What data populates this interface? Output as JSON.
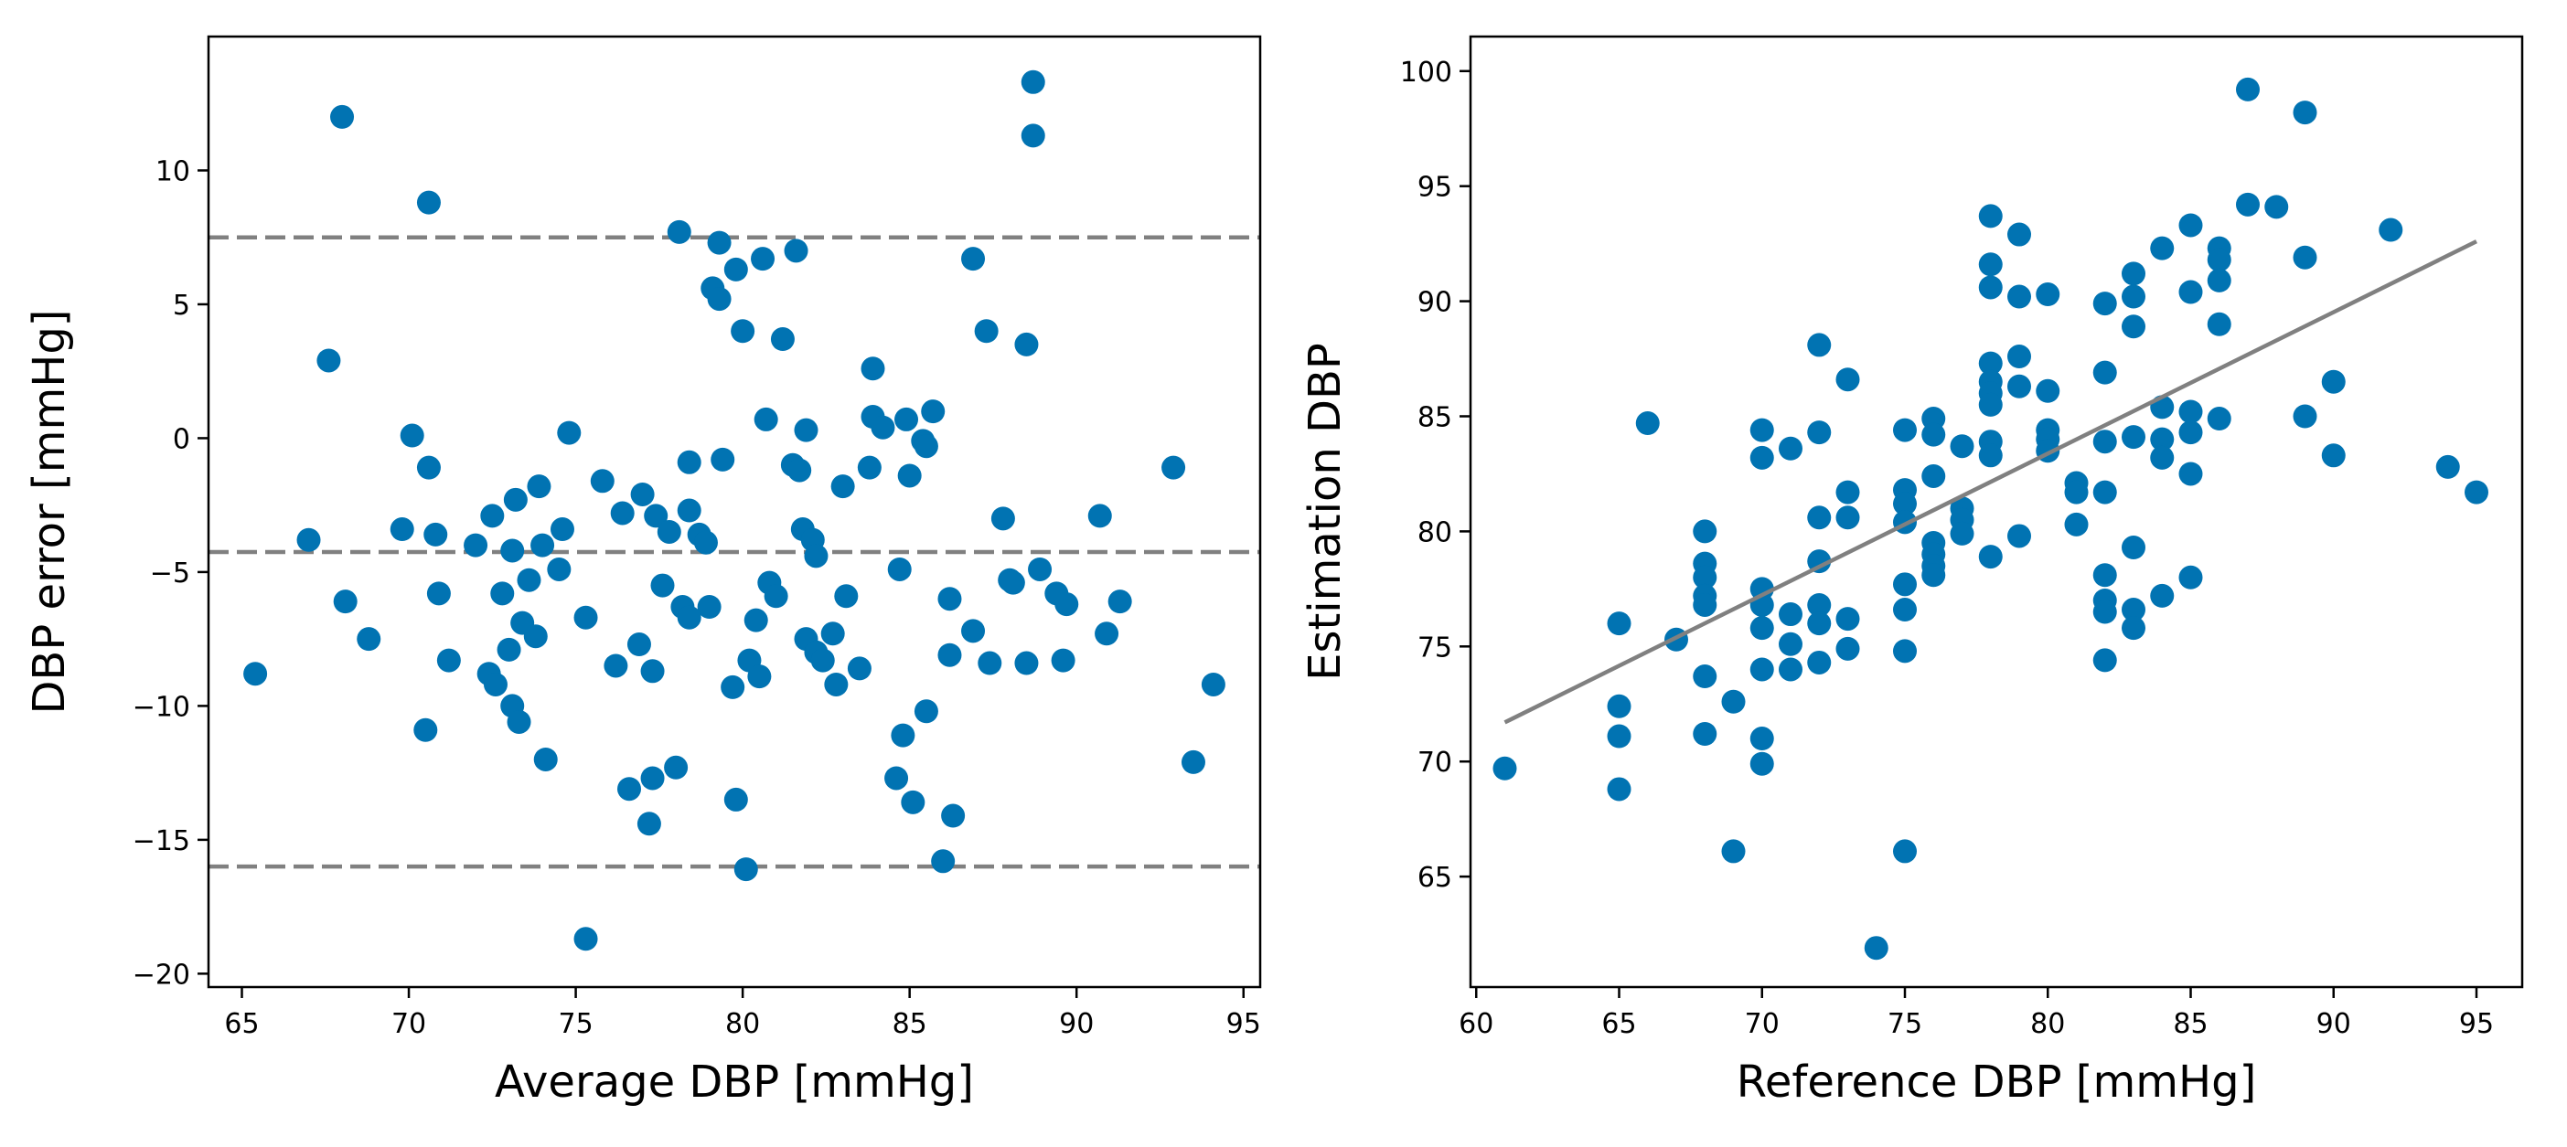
{
  "chart_data": [
    {
      "type": "scatter",
      "name": "bland-altman",
      "title": "",
      "xlabel": "Average DBP [mmHg]",
      "ylabel": "DBP error [mmHg]",
      "xlim": [
        64,
        95.5
      ],
      "ylim": [
        -20.5,
        15
      ],
      "xticks": [
        65,
        70,
        75,
        80,
        85,
        90,
        95
      ],
      "yticks": [
        -20,
        -15,
        -10,
        -5,
        0,
        5,
        10
      ],
      "tick_labels": {
        "x": [
          "65",
          "70",
          "75",
          "80",
          "85",
          "90",
          "95"
        ],
        "y": [
          "−20",
          "−15",
          "−10",
          "−5",
          "0",
          "5",
          "10"
        ]
      },
      "marker_color": "#0173b2",
      "line_color": "#808080",
      "hlines": [
        7.5,
        -4.25,
        -16.0
      ],
      "points": [
        [
          65.4,
          -8.8
        ],
        [
          67.0,
          -3.8
        ],
        [
          67.6,
          2.9
        ],
        [
          68.0,
          12.0
        ],
        [
          68.1,
          -6.1
        ],
        [
          68.8,
          -7.5
        ],
        [
          69.8,
          -3.4
        ],
        [
          70.1,
          0.1
        ],
        [
          70.5,
          -10.9
        ],
        [
          70.6,
          -1.1
        ],
        [
          70.6,
          8.8
        ],
        [
          70.8,
          -3.6
        ],
        [
          70.9,
          -5.8
        ],
        [
          71.2,
          -8.3
        ],
        [
          72.0,
          -4.0
        ],
        [
          72.4,
          -8.8
        ],
        [
          72.5,
          -2.9
        ],
        [
          72.6,
          -9.2
        ],
        [
          72.8,
          -5.8
        ],
        [
          73.0,
          -7.9
        ],
        [
          73.1,
          -4.2
        ],
        [
          73.1,
          -10.0
        ],
        [
          73.2,
          -2.3
        ],
        [
          73.3,
          -10.6
        ],
        [
          73.4,
          -6.9
        ],
        [
          73.6,
          -5.3
        ],
        [
          73.8,
          -7.4
        ],
        [
          73.9,
          -1.8
        ],
        [
          74.0,
          -4.0
        ],
        [
          74.1,
          -12.0
        ],
        [
          74.5,
          -4.9
        ],
        [
          74.6,
          -3.4
        ],
        [
          74.8,
          0.2
        ],
        [
          75.3,
          -18.7
        ],
        [
          75.3,
          -6.7
        ],
        [
          75.8,
          -1.6
        ],
        [
          76.2,
          -8.5
        ],
        [
          76.4,
          -2.8
        ],
        [
          76.6,
          -13.1
        ],
        [
          76.9,
          -7.7
        ],
        [
          77.0,
          -2.1
        ],
        [
          77.2,
          -14.4
        ],
        [
          77.3,
          -12.7
        ],
        [
          77.3,
          -8.7
        ],
        [
          77.4,
          -2.9
        ],
        [
          77.6,
          -5.5
        ],
        [
          77.8,
          -3.5
        ],
        [
          78.0,
          -12.3
        ],
        [
          78.1,
          7.7
        ],
        [
          78.2,
          -6.3
        ],
        [
          78.4,
          -6.7
        ],
        [
          78.4,
          -2.7
        ],
        [
          78.4,
          -0.9
        ],
        [
          78.7,
          -3.6
        ],
        [
          78.9,
          -3.9
        ],
        [
          79.0,
          -6.3
        ],
        [
          79.1,
          5.6
        ],
        [
          79.3,
          5.2
        ],
        [
          79.3,
          7.3
        ],
        [
          79.4,
          -0.8
        ],
        [
          79.7,
          -9.3
        ],
        [
          79.8,
          -13.5
        ],
        [
          79.8,
          6.3
        ],
        [
          80.0,
          4.0
        ],
        [
          80.1,
          -16.1
        ],
        [
          80.2,
          -8.3
        ],
        [
          80.4,
          -6.8
        ],
        [
          80.5,
          -8.9
        ],
        [
          80.6,
          6.7
        ],
        [
          80.7,
          0.7
        ],
        [
          80.8,
          -5.4
        ],
        [
          81.0,
          -5.9
        ],
        [
          81.2,
          3.7
        ],
        [
          81.5,
          -1.0
        ],
        [
          81.6,
          7.0
        ],
        [
          81.7,
          -1.2
        ],
        [
          81.8,
          -3.4
        ],
        [
          81.9,
          -7.5
        ],
        [
          81.9,
          0.3
        ],
        [
          82.1,
          -3.8
        ],
        [
          82.2,
          -8.0
        ],
        [
          82.2,
          -4.4
        ],
        [
          82.4,
          -8.3
        ],
        [
          82.7,
          -7.3
        ],
        [
          82.8,
          -9.2
        ],
        [
          83.0,
          -1.8
        ],
        [
          83.1,
          -5.9
        ],
        [
          83.5,
          -8.6
        ],
        [
          83.8,
          -1.1
        ],
        [
          83.9,
          0.8
        ],
        [
          83.9,
          2.6
        ],
        [
          84.2,
          0.4
        ],
        [
          84.6,
          -12.7
        ],
        [
          84.7,
          -4.9
        ],
        [
          84.8,
          -11.1
        ],
        [
          84.9,
          0.7
        ],
        [
          85.0,
          -1.4
        ],
        [
          85.1,
          -13.6
        ],
        [
          85.4,
          -0.1
        ],
        [
          85.5,
          -10.2
        ],
        [
          85.5,
          -0.3
        ],
        [
          85.7,
          1.0
        ],
        [
          86.0,
          -15.8
        ],
        [
          86.2,
          -8.1
        ],
        [
          86.2,
          -6.0
        ],
        [
          86.3,
          -14.1
        ],
        [
          86.9,
          -7.2
        ],
        [
          86.9,
          6.7
        ],
        [
          87.3,
          4.0
        ],
        [
          87.4,
          -8.4
        ],
        [
          87.8,
          -3.0
        ],
        [
          88.0,
          -5.3
        ],
        [
          88.1,
          -5.4
        ],
        [
          88.5,
          3.5
        ],
        [
          88.5,
          -8.4
        ],
        [
          88.7,
          11.3
        ],
        [
          88.7,
          13.3
        ],
        [
          88.9,
          -4.9
        ],
        [
          89.4,
          -5.8
        ],
        [
          89.6,
          -8.3
        ],
        [
          89.7,
          -6.2
        ],
        [
          90.7,
          -2.9
        ],
        [
          90.9,
          -7.3
        ],
        [
          91.3,
          -6.1
        ],
        [
          92.9,
          -1.1
        ],
        [
          93.5,
          -12.1
        ],
        [
          94.1,
          -9.2
        ]
      ]
    },
    {
      "type": "scatter",
      "name": "correlation",
      "title": "",
      "xlabel": "Reference DBP [mmHg]",
      "ylabel": "Estimation DBP",
      "xlim": [
        59.8,
        96.6
      ],
      "ylim": [
        60.2,
        101.5
      ],
      "xticks": [
        60,
        65,
        70,
        75,
        80,
        85,
        90,
        95
      ],
      "yticks": [
        65,
        70,
        75,
        80,
        85,
        90,
        95,
        100
      ],
      "tick_labels": {
        "x": [
          "60",
          "65",
          "70",
          "75",
          "80",
          "85",
          "90",
          "95"
        ],
        "y": [
          "65",
          "70",
          "75",
          "80",
          "85",
          "90",
          "95",
          "100"
        ]
      },
      "marker_color": "#0173b2",
      "line_color": "#808080",
      "fit_line": [
        [
          61,
          71.7
        ],
        [
          95,
          92.6
        ]
      ],
      "points": [
        [
          61,
          69.7
        ],
        [
          65,
          76.0
        ],
        [
          65,
          72.4
        ],
        [
          65,
          71.1
        ],
        [
          65,
          68.8
        ],
        [
          66,
          84.7
        ],
        [
          67,
          75.3
        ],
        [
          68,
          80.0
        ],
        [
          68,
          78.6
        ],
        [
          68,
          78.0
        ],
        [
          68,
          77.2
        ],
        [
          68,
          76.8
        ],
        [
          68,
          73.7
        ],
        [
          68,
          71.2
        ],
        [
          69,
          72.6
        ],
        [
          69,
          66.1
        ],
        [
          70,
          84.4
        ],
        [
          70,
          83.2
        ],
        [
          70,
          77.5
        ],
        [
          70,
          76.8
        ],
        [
          70,
          75.8
        ],
        [
          70,
          74.0
        ],
        [
          70,
          71.0
        ],
        [
          70,
          69.9
        ],
        [
          71,
          83.6
        ],
        [
          71,
          76.4
        ],
        [
          71,
          75.1
        ],
        [
          71,
          74.0
        ],
        [
          72,
          88.1
        ],
        [
          72,
          84.3
        ],
        [
          72,
          80.6
        ],
        [
          72,
          78.7
        ],
        [
          72,
          76.8
        ],
        [
          72,
          76.0
        ],
        [
          72,
          74.3
        ],
        [
          73,
          86.6
        ],
        [
          73,
          81.7
        ],
        [
          73,
          80.6
        ],
        [
          73,
          76.2
        ],
        [
          73,
          74.9
        ],
        [
          74,
          61.9
        ],
        [
          75,
          84.4
        ],
        [
          75,
          81.8
        ],
        [
          75,
          81.2
        ],
        [
          75,
          80.4
        ],
        [
          75,
          77.7
        ],
        [
          75,
          76.6
        ],
        [
          75,
          74.8
        ],
        [
          75,
          66.1
        ],
        [
          76,
          84.9
        ],
        [
          76,
          84.2
        ],
        [
          76,
          82.4
        ],
        [
          76,
          79.5
        ],
        [
          76,
          79.0
        ],
        [
          76,
          78.5
        ],
        [
          76,
          78.1
        ],
        [
          77,
          83.7
        ],
        [
          77,
          81.0
        ],
        [
          77,
          80.5
        ],
        [
          77,
          79.9
        ],
        [
          78,
          93.7
        ],
        [
          78,
          91.6
        ],
        [
          78,
          90.6
        ],
        [
          78,
          87.3
        ],
        [
          78,
          86.5
        ],
        [
          78,
          86.0
        ],
        [
          78,
          85.5
        ],
        [
          78,
          83.9
        ],
        [
          78,
          83.3
        ],
        [
          78,
          78.9
        ],
        [
          79,
          92.9
        ],
        [
          79,
          90.2
        ],
        [
          79,
          87.6
        ],
        [
          79,
          86.3
        ],
        [
          79,
          79.8
        ],
        [
          80,
          90.3
        ],
        [
          80,
          86.1
        ],
        [
          80,
          84.4
        ],
        [
          80,
          84.0
        ],
        [
          80,
          83.5
        ],
        [
          81,
          82.1
        ],
        [
          81,
          81.7
        ],
        [
          81,
          80.3
        ],
        [
          82,
          89.9
        ],
        [
          82,
          86.9
        ],
        [
          82,
          83.9
        ],
        [
          82,
          81.7
        ],
        [
          82,
          78.1
        ],
        [
          82,
          77.0
        ],
        [
          82,
          76.5
        ],
        [
          82,
          74.4
        ],
        [
          83,
          91.2
        ],
        [
          83,
          90.2
        ],
        [
          83,
          88.9
        ],
        [
          83,
          84.1
        ],
        [
          83,
          79.3
        ],
        [
          83,
          76.6
        ],
        [
          83,
          75.8
        ],
        [
          84,
          92.3
        ],
        [
          84,
          85.4
        ],
        [
          84,
          84.0
        ],
        [
          84,
          83.2
        ],
        [
          84,
          77.2
        ],
        [
          85,
          93.3
        ],
        [
          85,
          90.4
        ],
        [
          85,
          85.2
        ],
        [
          85,
          84.3
        ],
        [
          85,
          82.5
        ],
        [
          85,
          78.0
        ],
        [
          86,
          92.3
        ],
        [
          86,
          91.8
        ],
        [
          86,
          90.9
        ],
        [
          86,
          89.0
        ],
        [
          86,
          84.9
        ],
        [
          87,
          99.2
        ],
        [
          87,
          94.2
        ],
        [
          88,
          94.1
        ],
        [
          89,
          98.2
        ],
        [
          89,
          91.9
        ],
        [
          89,
          85.0
        ],
        [
          90,
          86.5
        ],
        [
          90,
          83.3
        ],
        [
          92,
          93.1
        ],
        [
          94,
          82.8
        ],
        [
          95,
          81.7
        ]
      ]
    }
  ]
}
